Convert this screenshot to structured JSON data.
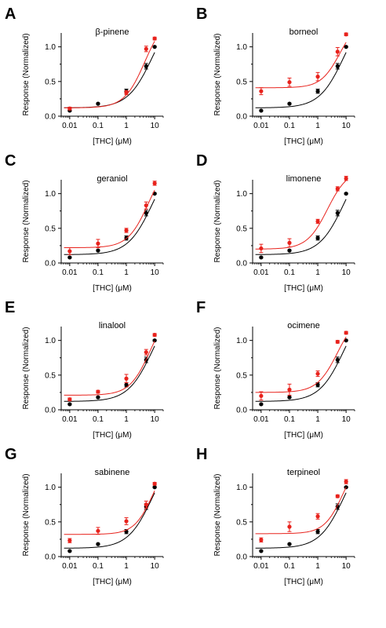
{
  "figure": {
    "colors": {
      "control": "#000000",
      "terpene": "#e8221c"
    }
  },
  "chart_data": [
    {
      "type": "scatter",
      "panel_label": "A",
      "title": "β-pinene",
      "xlabel": "[THC] (μM)",
      "ylabel": "Response (Normalized)",
      "x_scale": "log",
      "xlim": [
        0.005,
        20
      ],
      "ylim": [
        0,
        1.2
      ],
      "x_ticks": [
        "0.01",
        "0.1",
        "1",
        "10"
      ],
      "y_ticks": [
        "0.0",
        "0.5",
        "1.0"
      ],
      "series": [
        {
          "color": "#000000",
          "x": [
            0.01,
            0.1,
            1,
            5,
            10
          ],
          "y": [
            0.08,
            0.18,
            0.36,
            0.72,
            1.0
          ],
          "err": [
            0.01,
            0.01,
            0.03,
            0.04,
            0.01
          ],
          "fit": {
            "bottom": 0.12,
            "top": 1.6,
            "ec50": 8.5,
            "hill": 1.0
          }
        },
        {
          "color": "#e8221c",
          "x": [
            0.01,
            1,
            5,
            10
          ],
          "y": [
            0.11,
            0.34,
            0.97,
            1.12
          ],
          "err": [
            0.02,
            0.03,
            0.04,
            0.02
          ],
          "fit": {
            "bottom": 0.12,
            "top": 1.45,
            "ec50": 4.5,
            "hill": 1.2
          }
        }
      ]
    },
    {
      "type": "scatter",
      "panel_label": "B",
      "title": "borneol",
      "xlabel": "[THC] (μM)",
      "ylabel": "Response (Normalized)",
      "x_scale": "log",
      "xlim": [
        0.005,
        20
      ],
      "ylim": [
        0,
        1.2
      ],
      "x_ticks": [
        "0.01",
        "0.1",
        "1",
        "10"
      ],
      "y_ticks": [
        "0.0",
        "0.5",
        "1.0"
      ],
      "series": [
        {
          "color": "#000000",
          "x": [
            0.01,
            0.1,
            1,
            5,
            10
          ],
          "y": [
            0.08,
            0.18,
            0.36,
            0.72,
            1.0
          ],
          "err": [
            0.01,
            0.01,
            0.03,
            0.04,
            0.01
          ],
          "fit": {
            "bottom": 0.12,
            "top": 1.6,
            "ec50": 8.5,
            "hill": 1.0
          }
        },
        {
          "color": "#e8221c",
          "x": [
            0.01,
            0.1,
            1,
            5,
            10
          ],
          "y": [
            0.36,
            0.49,
            0.57,
            0.93,
            1.18
          ],
          "err": [
            0.05,
            0.06,
            0.06,
            0.06,
            0.02
          ],
          "fit": {
            "bottom": 0.41,
            "top": 1.4,
            "ec50": 6.0,
            "hill": 1.3
          }
        }
      ]
    },
    {
      "type": "scatter",
      "panel_label": "C",
      "title": "geraniol",
      "xlabel": "[THC] (μM)",
      "ylabel": "Response (Normalized)",
      "x_scale": "log",
      "xlim": [
        0.005,
        20
      ],
      "ylim": [
        0,
        1.2
      ],
      "x_ticks": [
        "0.01",
        "0.1",
        "1",
        "10"
      ],
      "y_ticks": [
        "0.0",
        "0.5",
        "1.0"
      ],
      "series": [
        {
          "color": "#000000",
          "x": [
            0.01,
            0.1,
            1,
            5,
            10
          ],
          "y": [
            0.08,
            0.18,
            0.36,
            0.72,
            1.0
          ],
          "err": [
            0.01,
            0.01,
            0.03,
            0.04,
            0.01
          ],
          "fit": {
            "bottom": 0.12,
            "top": 1.6,
            "ec50": 8.5,
            "hill": 1.0
          }
        },
        {
          "color": "#e8221c",
          "x": [
            0.01,
            0.1,
            1,
            5,
            10
          ],
          "y": [
            0.17,
            0.28,
            0.47,
            0.83,
            1.15
          ],
          "err": [
            0.05,
            0.06,
            0.03,
            0.05,
            0.03
          ],
          "fit": {
            "bottom": 0.22,
            "top": 1.5,
            "ec50": 6.0,
            "hill": 1.2
          }
        }
      ]
    },
    {
      "type": "scatter",
      "panel_label": "D",
      "title": "limonene",
      "xlabel": "[THC] (μM)",
      "ylabel": "Response (Normalized)",
      "x_scale": "log",
      "xlim": [
        0.005,
        20
      ],
      "ylim": [
        0,
        1.2
      ],
      "x_ticks": [
        "0.01",
        "0.1",
        "1",
        "10"
      ],
      "y_ticks": [
        "0.0",
        "0.5",
        "1.0"
      ],
      "series": [
        {
          "color": "#000000",
          "x": [
            0.01,
            0.1,
            1,
            5,
            10
          ],
          "y": [
            0.08,
            0.18,
            0.36,
            0.72,
            1.0
          ],
          "err": [
            0.01,
            0.01,
            0.03,
            0.04,
            0.01
          ],
          "fit": {
            "bottom": 0.12,
            "top": 1.6,
            "ec50": 8.5,
            "hill": 1.0
          }
        },
        {
          "color": "#e8221c",
          "x": [
            0.01,
            0.1,
            1,
            5,
            10
          ],
          "y": [
            0.21,
            0.29,
            0.6,
            1.07,
            1.22
          ],
          "err": [
            0.06,
            0.06,
            0.03,
            0.03,
            0.03
          ],
          "fit": {
            "bottom": 0.2,
            "top": 1.35,
            "ec50": 2.2,
            "hill": 1.2
          }
        }
      ]
    },
    {
      "type": "scatter",
      "panel_label": "E",
      "title": "linalool",
      "xlabel": "[THC] (μM)",
      "ylabel": "Response (Normalized)",
      "x_scale": "log",
      "xlim": [
        0.005,
        20
      ],
      "ylim": [
        0,
        1.2
      ],
      "x_ticks": [
        "0.01",
        "0.1",
        "1",
        "10"
      ],
      "y_ticks": [
        "0.0",
        "0.5",
        "1.0"
      ],
      "series": [
        {
          "color": "#000000",
          "x": [
            0.01,
            0.1,
            1,
            5,
            10
          ],
          "y": [
            0.08,
            0.18,
            0.36,
            0.72,
            1.0
          ],
          "err": [
            0.01,
            0.01,
            0.03,
            0.04,
            0.01
          ],
          "fit": {
            "bottom": 0.12,
            "top": 1.6,
            "ec50": 8.5,
            "hill": 1.0
          }
        },
        {
          "color": "#e8221c",
          "x": [
            0.01,
            0.1,
            1,
            5,
            10
          ],
          "y": [
            0.15,
            0.26,
            0.45,
            0.83,
            1.08
          ],
          "err": [
            0.02,
            0.02,
            0.06,
            0.04,
            0.02
          ],
          "fit": {
            "bottom": 0.21,
            "top": 1.5,
            "ec50": 7.0,
            "hill": 1.2
          }
        }
      ]
    },
    {
      "type": "scatter",
      "panel_label": "F",
      "title": "ocimene",
      "xlabel": "[THC] (μM)",
      "ylabel": "Response (Normalized)",
      "x_scale": "log",
      "xlim": [
        0.005,
        20
      ],
      "ylim": [
        0,
        1.2
      ],
      "x_ticks": [
        "0.01",
        "0.1",
        "1",
        "10"
      ],
      "y_ticks": [
        "0.0",
        "0.5",
        "1.0"
      ],
      "series": [
        {
          "color": "#000000",
          "x": [
            0.01,
            0.1,
            1,
            5,
            10
          ],
          "y": [
            0.08,
            0.18,
            0.36,
            0.72,
            1.0
          ],
          "err": [
            0.01,
            0.01,
            0.03,
            0.04,
            0.01
          ],
          "fit": {
            "bottom": 0.12,
            "top": 1.6,
            "ec50": 8.5,
            "hill": 1.0
          }
        },
        {
          "color": "#e8221c",
          "x": [
            0.01,
            0.1,
            1,
            5,
            10
          ],
          "y": [
            0.2,
            0.29,
            0.52,
            0.98,
            1.11
          ],
          "err": [
            0.06,
            0.08,
            0.04,
            0.02,
            0.02
          ],
          "fit": {
            "bottom": 0.25,
            "top": 1.4,
            "ec50": 5.0,
            "hill": 1.2
          }
        }
      ]
    },
    {
      "type": "scatter",
      "panel_label": "G",
      "title": "sabinene",
      "xlabel": "[THC] (μM)",
      "ylabel": "Response (Normalized)",
      "x_scale": "log",
      "xlim": [
        0.005,
        20
      ],
      "ylim": [
        0,
        1.2
      ],
      "x_ticks": [
        "0.01",
        "0.1",
        "1",
        "10"
      ],
      "y_ticks": [
        "0.0",
        "0.5",
        "1.0"
      ],
      "series": [
        {
          "color": "#000000",
          "x": [
            0.01,
            0.1,
            1,
            5,
            10
          ],
          "y": [
            0.08,
            0.18,
            0.36,
            0.72,
            1.0
          ],
          "err": [
            0.01,
            0.01,
            0.03,
            0.04,
            0.01
          ],
          "fit": {
            "bottom": 0.12,
            "top": 1.6,
            "ec50": 8.5,
            "hill": 1.0
          }
        },
        {
          "color": "#e8221c",
          "x": [
            0.01,
            0.1,
            1,
            5,
            10
          ],
          "y": [
            0.23,
            0.37,
            0.51,
            0.75,
            1.05
          ],
          "err": [
            0.03,
            0.05,
            0.05,
            0.05,
            0.02
          ],
          "fit": {
            "bottom": 0.32,
            "top": 1.5,
            "ec50": 9.0,
            "hill": 1.3
          }
        }
      ]
    },
    {
      "type": "scatter",
      "panel_label": "H",
      "title": "terpineol",
      "xlabel": "[THC] (μM)",
      "ylabel": "Response (Normalized)",
      "x_scale": "log",
      "xlim": [
        0.005,
        20
      ],
      "ylim": [
        0,
        1.2
      ],
      "x_ticks": [
        "0.01",
        "0.1",
        "1",
        "10"
      ],
      "y_ticks": [
        "0.0",
        "0.5",
        "1.0"
      ],
      "series": [
        {
          "color": "#000000",
          "x": [
            0.01,
            0.1,
            1,
            5,
            10
          ],
          "y": [
            0.08,
            0.18,
            0.36,
            0.72,
            1.0
          ],
          "err": [
            0.01,
            0.01,
            0.03,
            0.04,
            0.01
          ],
          "fit": {
            "bottom": 0.12,
            "top": 1.6,
            "ec50": 8.5,
            "hill": 1.0
          }
        },
        {
          "color": "#e8221c",
          "x": [
            0.01,
            0.1,
            1,
            5,
            10
          ],
          "y": [
            0.24,
            0.43,
            0.58,
            0.87,
            1.08
          ],
          "err": [
            0.03,
            0.07,
            0.04,
            0.02,
            0.03
          ],
          "fit": {
            "bottom": 0.33,
            "top": 1.5,
            "ec50": 8.0,
            "hill": 1.3
          }
        }
      ]
    }
  ]
}
